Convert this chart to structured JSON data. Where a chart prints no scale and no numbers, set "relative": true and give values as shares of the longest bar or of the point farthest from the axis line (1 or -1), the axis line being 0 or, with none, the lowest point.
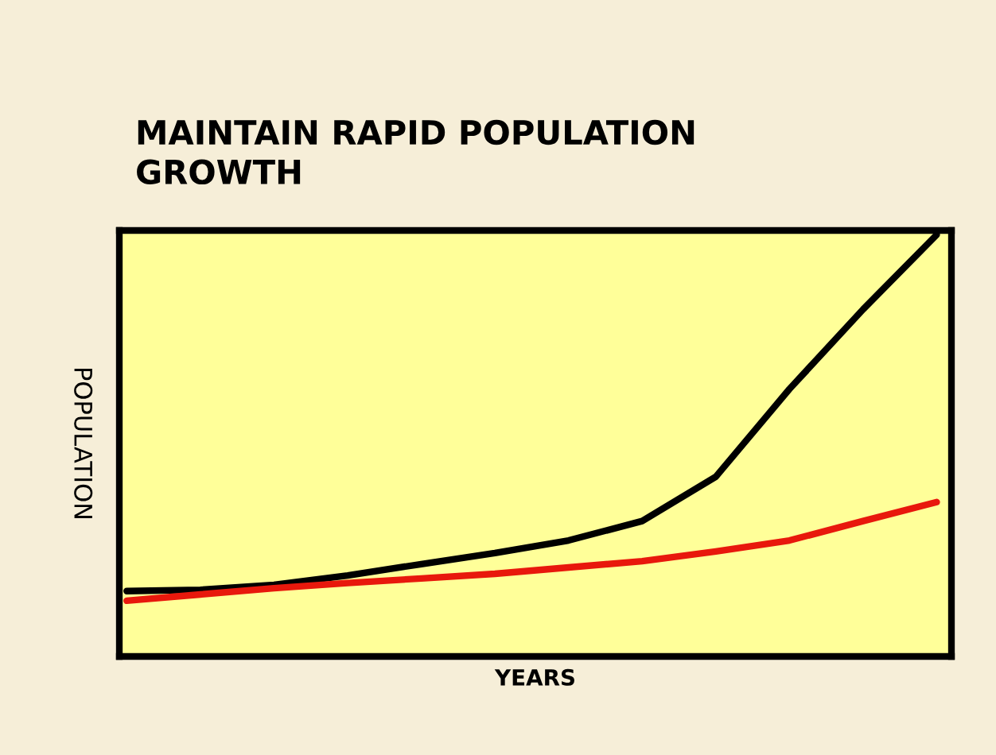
{
  "chart_data": {
    "type": "line",
    "title": "MAINTAIN RAPID POPULATION\nGROWTH",
    "xlabel": "YEARS",
    "ylabel": "POPULATION",
    "relative": true,
    "categories": [
      null,
      null,
      null,
      null,
      null,
      null,
      null,
      null,
      null,
      null,
      null,
      null
    ],
    "series": [
      {
        "color": "#000000",
        "values": [
          0.155,
          0.158,
          0.17,
          0.192,
          0.219,
          0.245,
          0.275,
          0.321,
          0.426,
          0.634,
          0.823,
          1.0
        ]
      },
      {
        "color": "#e8180c",
        "values": [
          0.132,
          0.147,
          0.162,
          0.174,
          0.185,
          0.196,
          0.211,
          0.226,
          0.249,
          0.275,
          0.321,
          0.366
        ]
      }
    ],
    "grid": false,
    "marker": "none",
    "line_style": "solid"
  }
}
